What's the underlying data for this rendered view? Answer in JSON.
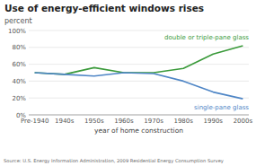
{
  "chart_data": {
    "type": "line",
    "title": "Use of energy-efficient windows rises",
    "ylabel": "percent",
    "xlabel": "year of home construction",
    "source": "Source:  U.S. Energy Information Administration, 2009 Residential Energy Consumption Survey",
    "categories": [
      "Pre-1940",
      "1940s",
      "1950s",
      "1960s",
      "1970s",
      "1980s",
      "1990s",
      "2000s"
    ],
    "series": [
      {
        "name": "double or triple-pane glass",
        "color": "#3a9a3a",
        "values": [
          50,
          48,
          56,
          50,
          50,
          55,
          72,
          82
        ]
      },
      {
        "name": "single-pane glass",
        "color": "#4f86c6",
        "values": [
          50,
          48,
          46,
          50,
          49,
          40,
          27,
          19
        ]
      }
    ],
    "ylim": [
      0,
      100
    ],
    "yticks": [
      {
        "value": 0,
        "label": "0%"
      },
      {
        "value": 20,
        "label": "20%"
      },
      {
        "value": 40,
        "label": "40%"
      },
      {
        "value": 60,
        "label": "60%"
      },
      {
        "value": 80,
        "label": "80%"
      },
      {
        "value": 100,
        "label": "100%"
      }
    ],
    "grid": true
  }
}
